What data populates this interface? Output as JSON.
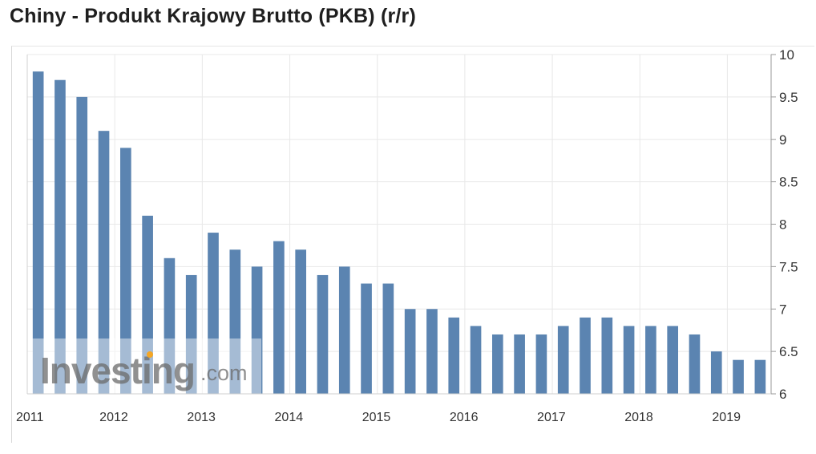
{
  "title": "Chiny - Produkt Krajowy Brutto (PKB) (r/r)",
  "watermark": {
    "brand": "Investing",
    "suffix": ".com"
  },
  "colors": {
    "bar": "#5b84b1",
    "grid": "#e8e8e8",
    "axis": "#9a9a9a",
    "text": "#333333",
    "watermark_dot": "#f5a623"
  },
  "chart_data": {
    "type": "bar",
    "title": "Chiny - Produkt Krajowy Brutto (PKB) (r/r)",
    "xlabel": "",
    "ylabel": "",
    "ylim": [
      6,
      10
    ],
    "y_ticks": [
      6,
      6.5,
      7,
      7.5,
      8,
      8.5,
      9,
      9.5,
      10
    ],
    "y_axis_position": "right",
    "x_tick_labels": [
      "2011",
      "2012",
      "2013",
      "2014",
      "2015",
      "2016",
      "2017",
      "2018",
      "2019"
    ],
    "grid": true,
    "values": [
      9.8,
      9.7,
      9.5,
      9.1,
      8.9,
      8.1,
      7.6,
      7.4,
      7.9,
      7.7,
      7.5,
      7.8,
      7.7,
      7.4,
      7.5,
      7.3,
      7.3,
      7.0,
      7.0,
      6.9,
      6.8,
      6.7,
      6.7,
      6.7,
      6.8,
      6.9,
      6.9,
      6.8,
      6.8,
      6.8,
      6.7,
      6.5,
      6.4,
      6.4
    ]
  }
}
